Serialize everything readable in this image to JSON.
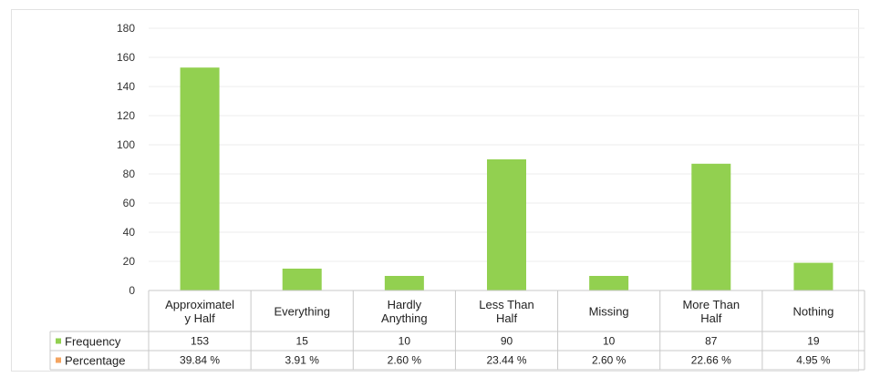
{
  "chart_data": {
    "type": "bar",
    "title": "",
    "xlabel": "",
    "ylabel": "",
    "ylim": [
      0,
      180
    ],
    "yticks": [
      0,
      20,
      40,
      60,
      80,
      100,
      120,
      140,
      160,
      180
    ],
    "grid": true,
    "categories": [
      [
        "Approximatel",
        "y Half"
      ],
      [
        "Everything"
      ],
      [
        "Hardly",
        "Anything"
      ],
      [
        "Less Than",
        "Half"
      ],
      [
        "Missing"
      ],
      [
        "More Than",
        "Half"
      ],
      [
        "Nothing"
      ]
    ],
    "series": [
      {
        "name": "Frequency",
        "color": "#92d050",
        "values": [
          153,
          15,
          10,
          90,
          10,
          87,
          19
        ],
        "labels": [
          "153",
          "15",
          "10",
          "90",
          "10",
          "87",
          "19"
        ]
      }
    ],
    "table": {
      "rows": [
        {
          "name": "Frequency",
          "color": "#92d050",
          "cells": [
            "153",
            "15",
            "10",
            "90",
            "10",
            "87",
            "19"
          ]
        },
        {
          "name": "Percentage",
          "color": "#f4a460",
          "cells": [
            "39.84 %",
            "3.91 %",
            "2.60 %",
            "23.44 %",
            "2.60 %",
            "22.66 %",
            "4.95 %"
          ]
        }
      ]
    }
  }
}
